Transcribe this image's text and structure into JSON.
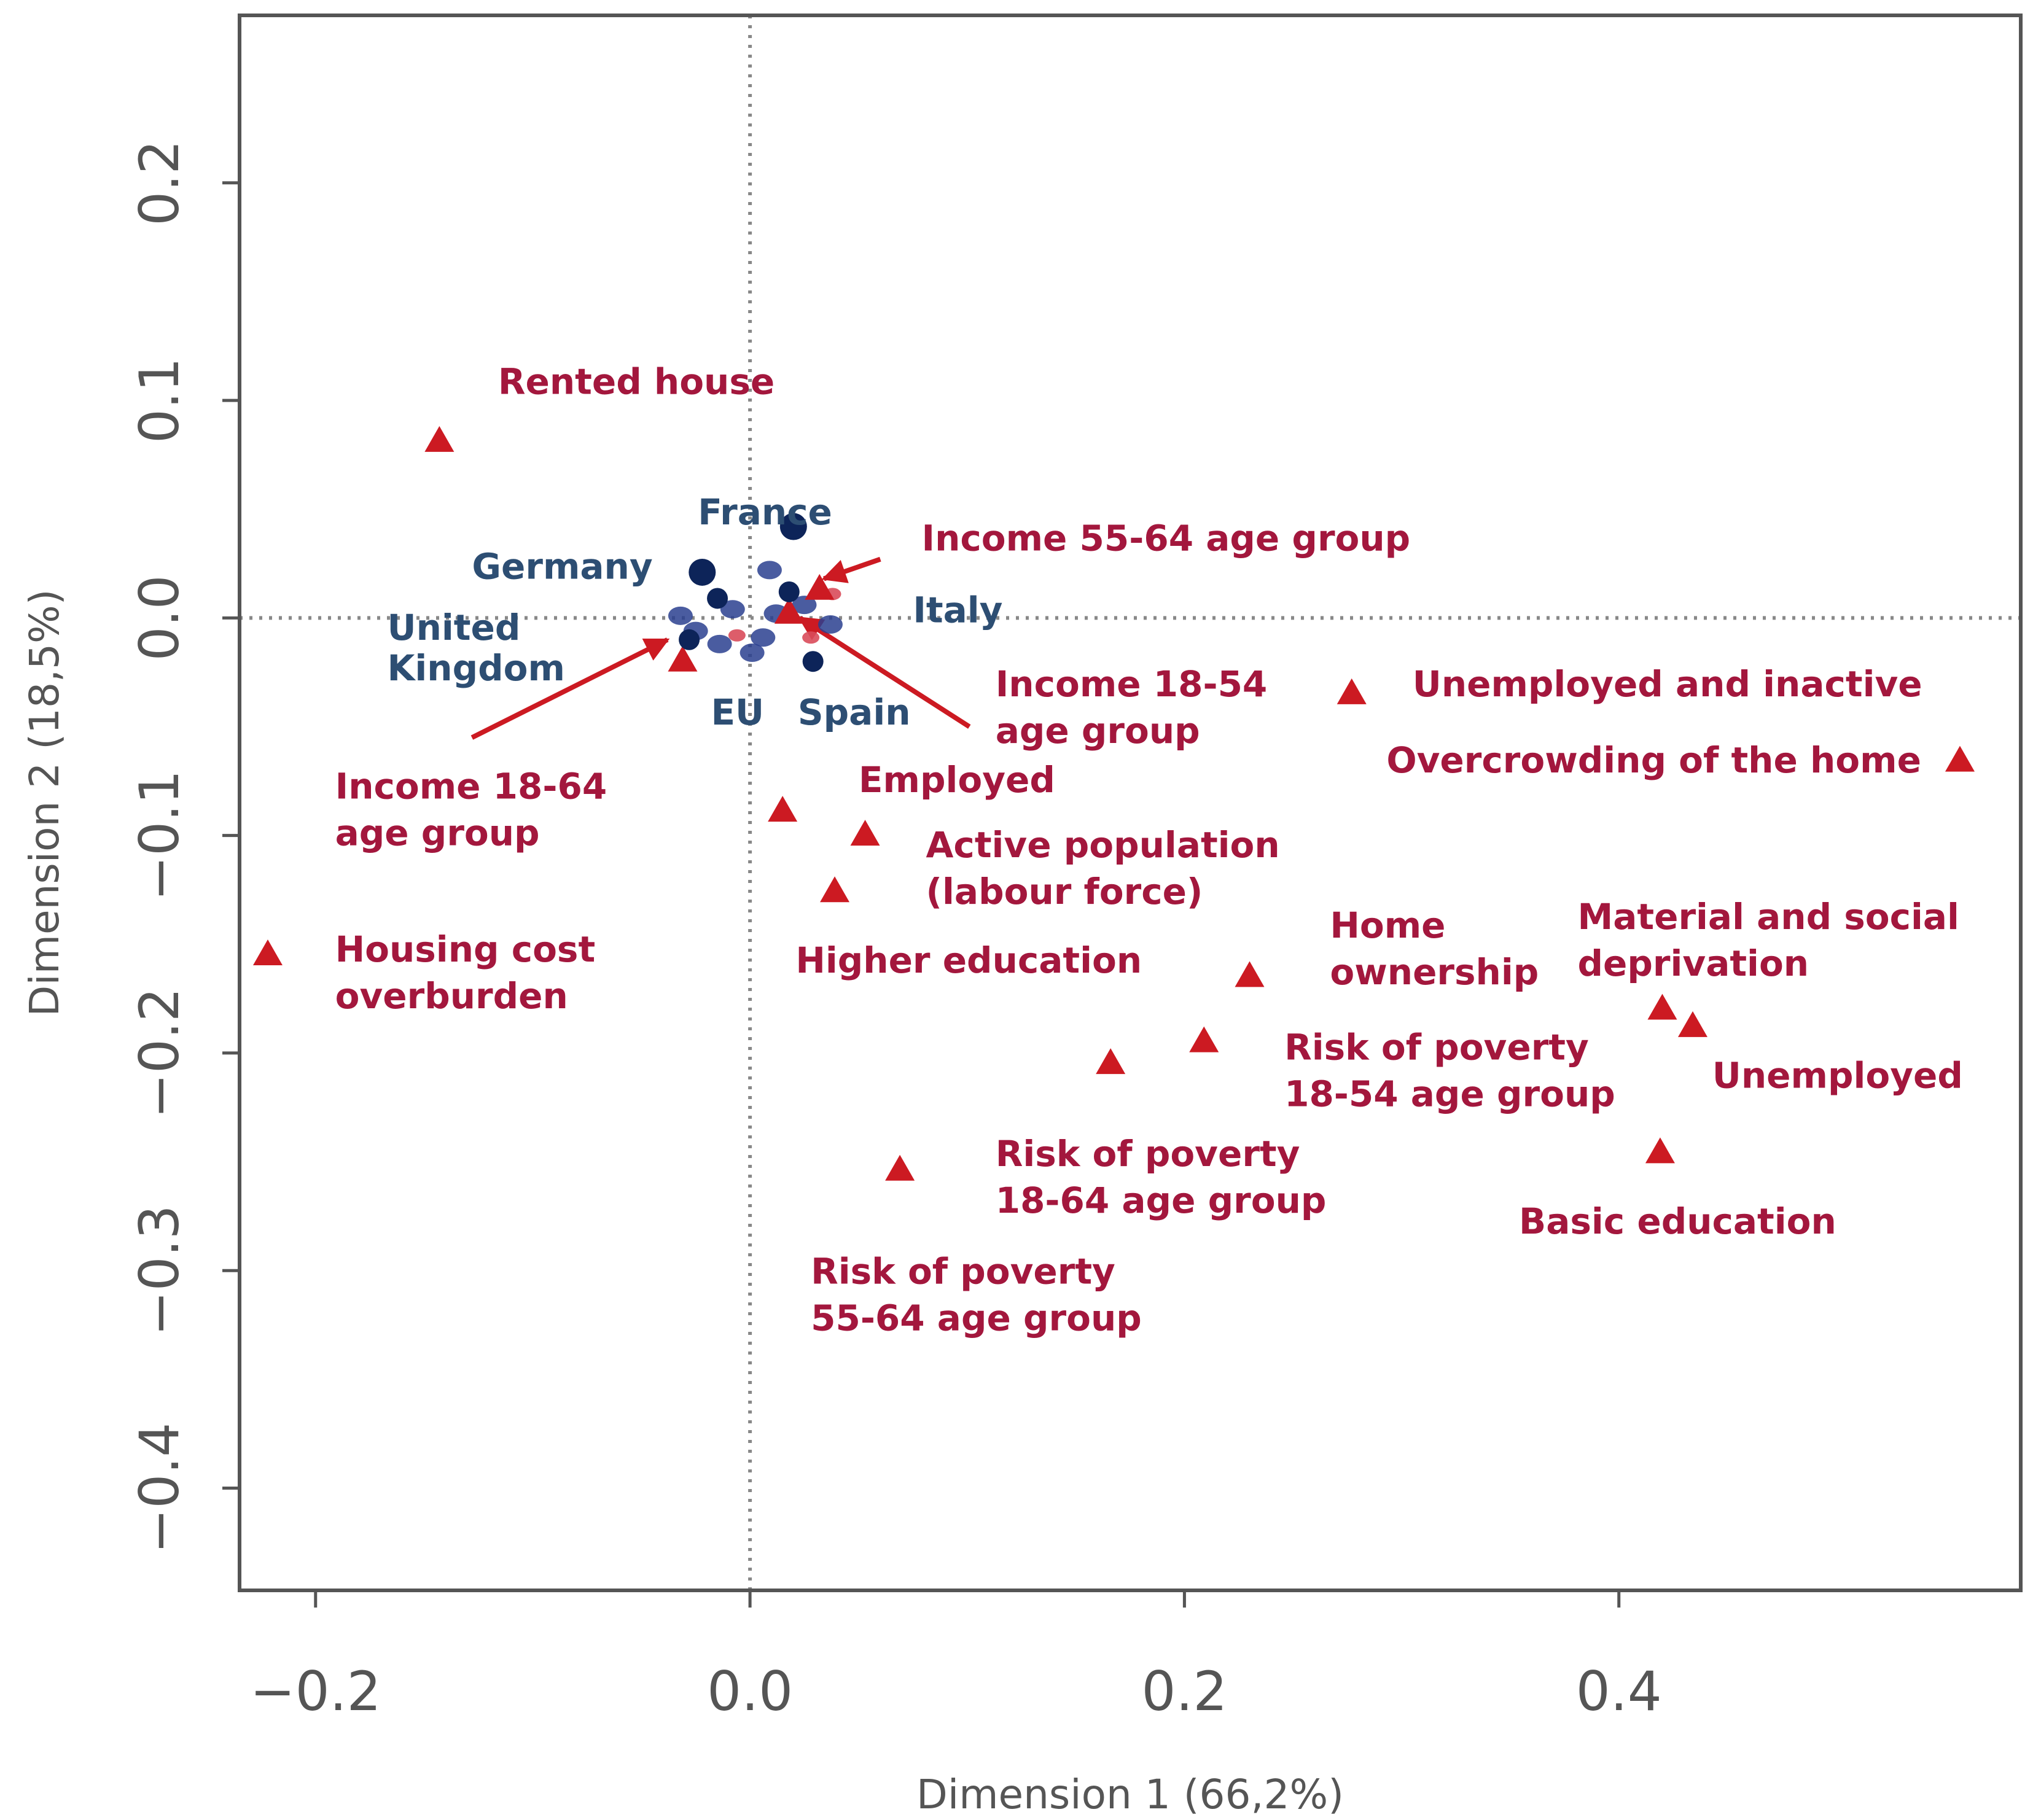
{
  "chart_data": {
    "type": "scatter",
    "xlabel": "Dimension 1 (66,2%)",
    "ylabel": "Dimension 2 (18,5%)",
    "xlim": [
      -0.235,
      0.585
    ],
    "ylim": [
      -0.447,
      0.277
    ],
    "x_ticks": [
      {
        "value": -0.2,
        "label": "−0.2"
      },
      {
        "value": 0.0,
        "label": "0.0"
      },
      {
        "value": 0.2,
        "label": "0.2"
      },
      {
        "value": 0.4,
        "label": "0.4"
      }
    ],
    "y_ticks": [
      {
        "value": 0.2,
        "label": "0.2"
      },
      {
        "value": 0.1,
        "label": "0.1"
      },
      {
        "value": 0.0,
        "label": "0.0"
      },
      {
        "value": -0.1,
        "label": "−0.1"
      },
      {
        "value": -0.2,
        "label": "−0.2"
      },
      {
        "value": -0.3,
        "label": "−0.3"
      },
      {
        "value": -0.4,
        "label": "−0.4"
      }
    ],
    "grid": false,
    "reference_lines": {
      "x": 0.0,
      "y": 0.0,
      "style": "dotted"
    },
    "colors": {
      "variables": "#cc1a22",
      "variable_labels": "#a3173d",
      "countries": "#0d2459",
      "country_labels": "#2d4e73",
      "axes": "#555555"
    },
    "variables": [
      {
        "id": "rented-house",
        "x": -0.143,
        "y": 0.082,
        "label_lines": [
          "Rented house"
        ]
      },
      {
        "id": "income-55-64",
        "x": 0.032,
        "y": 0.014,
        "label_lines": [
          "Income 55-64 age group"
        ]
      },
      {
        "id": "income-18-54",
        "x": 0.018,
        "y": 0.003,
        "label_lines": [
          "Income 18-54",
          "age group"
        ]
      },
      {
        "id": "income-18-64",
        "x": -0.031,
        "y": -0.019,
        "label_lines": [
          "Income 18-64",
          "age group"
        ]
      },
      {
        "id": "unemployed-inactive",
        "x": 0.277,
        "y": -0.034,
        "label_lines": [
          "Unemployed and inactive"
        ]
      },
      {
        "id": "overcrowding",
        "x": 0.557,
        "y": -0.065,
        "label_lines": [
          "Overcrowding of the home"
        ]
      },
      {
        "id": "employed",
        "x": 0.015,
        "y": -0.088,
        "label_lines": [
          "Employed"
        ]
      },
      {
        "id": "active-population",
        "x": 0.053,
        "y": -0.099,
        "label_lines": [
          "Active population",
          "(labour force)"
        ]
      },
      {
        "id": "higher-education",
        "x": 0.039,
        "y": -0.125,
        "label_lines": [
          "Higher education"
        ]
      },
      {
        "id": "housing-cost-overburden",
        "x": -0.222,
        "y": -0.154,
        "label_lines": [
          "Housing cost",
          "overburden"
        ]
      },
      {
        "id": "home-ownership",
        "x": 0.23,
        "y": -0.164,
        "label_lines": [
          "Home",
          "ownership"
        ]
      },
      {
        "id": "material-social-deprivation",
        "x": 0.42,
        "y": -0.179,
        "label_lines": [
          "Material and social",
          "deprivation"
        ]
      },
      {
        "id": "unemployed",
        "x": 0.434,
        "y": -0.187,
        "label_lines": [
          "Unemployed"
        ]
      },
      {
        "id": "risk-poverty-18-54",
        "x": 0.209,
        "y": -0.194,
        "label_lines": [
          "Risk  of  poverty",
          "18-54 age group"
        ]
      },
      {
        "id": "risk-poverty-18-64",
        "x": 0.166,
        "y": -0.204,
        "label_lines": [
          "Risk  of  poverty",
          "18-64 age group"
        ]
      },
      {
        "id": "risk-poverty-55-64",
        "x": 0.069,
        "y": -0.253,
        "label_lines": [
          "Risk  of  poverty",
          "55-64 age group"
        ]
      },
      {
        "id": "basic-education",
        "x": 0.419,
        "y": -0.245,
        "label_lines": [
          "Basic education"
        ]
      }
    ],
    "countries": [
      {
        "id": "france",
        "label": "France",
        "x": 0.02,
        "y": 0.042
      },
      {
        "id": "germany",
        "label": "Germany",
        "x": -0.022,
        "y": 0.021
      },
      {
        "id": "italy",
        "label": "Italy",
        "x": 0.018,
        "y": 0.012
      },
      {
        "id": "united-kingdom",
        "label_lines": [
          "United",
          "Kingdom"
        ],
        "x": -0.028,
        "y": -0.01
      },
      {
        "id": "eu",
        "label": "EU",
        "x": -0.015,
        "y": 0.009
      },
      {
        "id": "spain",
        "label": "Spain",
        "x": 0.029,
        "y": -0.02
      }
    ],
    "annotations": [
      {
        "label": "Income 55-64 age group",
        "arrow_from": [
          0.06,
          0.027
        ],
        "arrow_to": [
          0.034,
          0.018
        ]
      },
      {
        "label": "Income 18-54 age group",
        "arrow_from": [
          0.101,
          -0.05
        ],
        "arrow_to": [
          0.023,
          0.0
        ]
      },
      {
        "label": "Income 18-64 age group",
        "arrow_from": [
          -0.128,
          -0.055
        ],
        "arrow_to": [
          -0.038,
          -0.01
        ]
      }
    ]
  }
}
